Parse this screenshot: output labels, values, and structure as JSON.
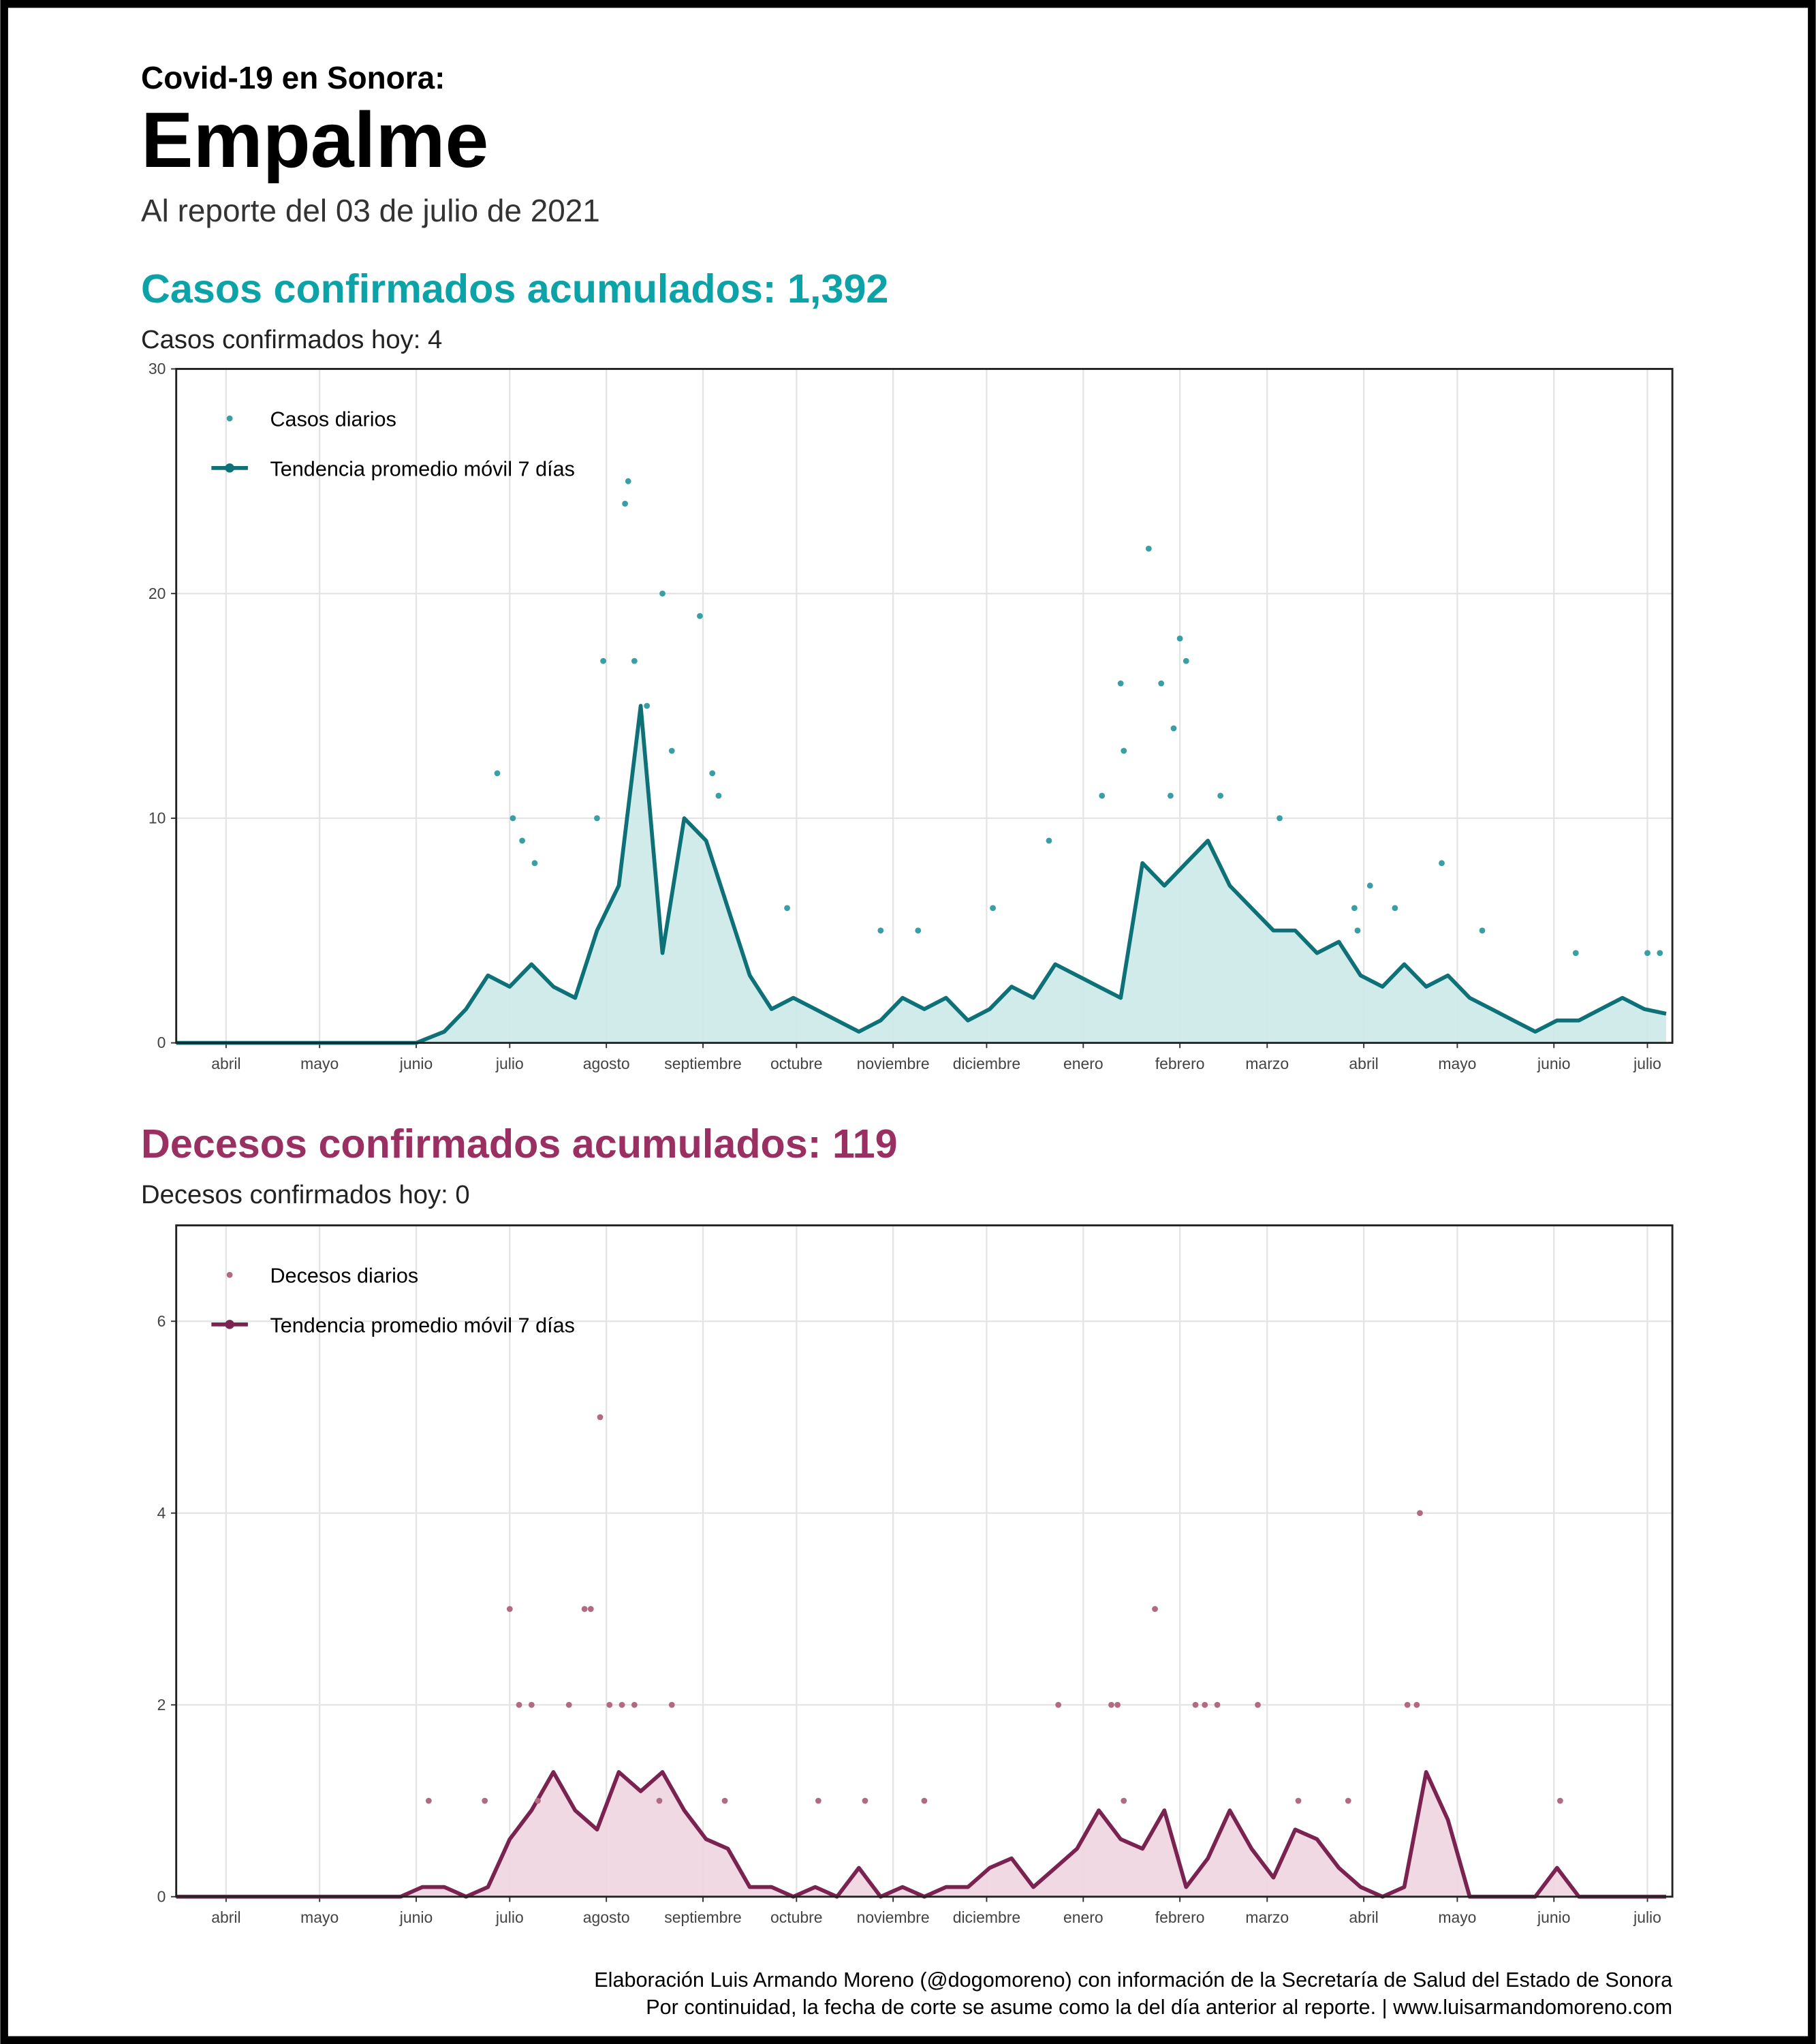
{
  "header": {
    "supertitle": "Covid-19 en Sonora:",
    "title": "Empalme",
    "subtitle": "Al reporte del 03 de julio de 2021"
  },
  "chart_data": [
    {
      "type": "line",
      "title": "Casos confirmados acumulados: 1,392",
      "subtitle": "Casos confirmados hoy: 4",
      "legend": "top-left",
      "grid": true,
      "xlim": [
        -16,
        464
      ],
      "xticks": [
        {
          "value": 0,
          "label": "abril"
        },
        {
          "value": 30,
          "label": "mayo"
        },
        {
          "value": 61,
          "label": "junio"
        },
        {
          "value": 91,
          "label": "julio"
        },
        {
          "value": 122,
          "label": "agosto"
        },
        {
          "value": 153,
          "label": "septiembre"
        },
        {
          "value": 183,
          "label": "octubre"
        },
        {
          "value": 214,
          "label": "noviembre"
        },
        {
          "value": 244,
          "label": "diciembre"
        },
        {
          "value": 275,
          "label": "enero"
        },
        {
          "value": 306,
          "label": "febrero"
        },
        {
          "value": 334,
          "label": "marzo"
        },
        {
          "value": 365,
          "label": "abril"
        },
        {
          "value": 395,
          "label": "mayo"
        },
        {
          "value": 426,
          "label": "junio"
        },
        {
          "value": 456,
          "label": "julio"
        }
      ],
      "ylim": [
        0,
        30
      ],
      "yticks": [
        0,
        10,
        20,
        30
      ],
      "series": [
        {
          "name": "Casos diarios",
          "type": "scatter",
          "color": "#3a9ea5",
          "x": [
            128,
            129,
            131,
            121,
            140,
            152,
            119,
            135,
            143,
            87,
            92,
            99,
            95,
            287,
            296,
            300,
            306,
            308,
            288,
            304,
            281,
            319,
            338,
            362,
            367,
            390,
            363,
            433,
            456,
            460,
            210,
            222,
            156,
            180,
            375,
            403,
            158,
            303,
            246,
            264
          ],
          "values": [
            24,
            25,
            17,
            17,
            20,
            19,
            10,
            15,
            13,
            12,
            10,
            8,
            9,
            16,
            22,
            16,
            18,
            17,
            13,
            14,
            11,
            11,
            10,
            6,
            7,
            8,
            5,
            4,
            4,
            4,
            5,
            5,
            12,
            6,
            6,
            5,
            11,
            11,
            6,
            9
          ]
        },
        {
          "name": "Tendencia promedio móvil 7 días",
          "type": "line",
          "color": "#0f7178",
          "area_color": "#cce9e9",
          "x": [
            -16,
            61,
            70,
            77,
            84,
            91,
            98,
            105,
            112,
            119,
            126,
            133,
            140,
            147,
            154,
            161,
            168,
            175,
            182,
            189,
            196,
            203,
            210,
            217,
            224,
            231,
            238,
            245,
            252,
            259,
            266,
            273,
            280,
            287,
            294,
            301,
            308,
            315,
            322,
            329,
            336,
            343,
            350,
            357,
            364,
            371,
            378,
            385,
            392,
            399,
            406,
            413,
            420,
            427,
            434,
            441,
            448,
            455,
            462
          ],
          "values": [
            0,
            0,
            0.5,
            1.5,
            3,
            2.5,
            3.5,
            2.5,
            2,
            5,
            7,
            15,
            4,
            10,
            9,
            6,
            3,
            1.5,
            2,
            1.5,
            1,
            0.5,
            1,
            2,
            1.5,
            2,
            1,
            1.5,
            2.5,
            2,
            3.5,
            3,
            2.5,
            2,
            8,
            7,
            8,
            9,
            7,
            6,
            5,
            5,
            4,
            4.5,
            3,
            2.5,
            3.5,
            2.5,
            3,
            2,
            1.5,
            1,
            0.5,
            1,
            1,
            1.5,
            2,
            1.5,
            1.3
          ]
        }
      ]
    },
    {
      "type": "line",
      "title": "Decesos confirmados acumulados: 119",
      "subtitle": "Decesos confirmados hoy: 0",
      "legend": "top-left",
      "grid": true,
      "xlim": [
        -16,
        464
      ],
      "xticks": [
        {
          "value": 0,
          "label": "abril"
        },
        {
          "value": 30,
          "label": "mayo"
        },
        {
          "value": 61,
          "label": "junio"
        },
        {
          "value": 91,
          "label": "julio"
        },
        {
          "value": 122,
          "label": "agosto"
        },
        {
          "value": 153,
          "label": "septiembre"
        },
        {
          "value": 183,
          "label": "octubre"
        },
        {
          "value": 214,
          "label": "noviembre"
        },
        {
          "value": 244,
          "label": "diciembre"
        },
        {
          "value": 275,
          "label": "enero"
        },
        {
          "value": 306,
          "label": "febrero"
        },
        {
          "value": 334,
          "label": "marzo"
        },
        {
          "value": 365,
          "label": "abril"
        },
        {
          "value": 395,
          "label": "mayo"
        },
        {
          "value": 426,
          "label": "junio"
        },
        {
          "value": 456,
          "label": "julio"
        }
      ],
      "ylim": [
        0,
        7
      ],
      "yticks": [
        0,
        2,
        4,
        6
      ],
      "series": [
        {
          "name": "Decesos diarios",
          "type": "scatter",
          "color": "#b06a84",
          "x": [
            91,
            120,
            115,
            117,
            94,
            98,
            110,
            123,
            127,
            131,
            143,
            267,
            284,
            286,
            298,
            311,
            314,
            318,
            331,
            383,
            379,
            382,
            65,
            83,
            100,
            139,
            160,
            190,
            205,
            224,
            288,
            344,
            360,
            428
          ],
          "values": [
            3,
            5,
            3,
            3,
            2,
            2,
            2,
            2,
            2,
            2,
            2,
            2,
            2,
            2,
            3,
            2,
            2,
            2,
            2,
            4,
            2,
            2,
            1,
            1,
            1,
            1,
            1,
            1,
            1,
            1,
            1,
            1,
            1,
            1
          ]
        },
        {
          "name": "Tendencia promedio móvil 7 días",
          "type": "line",
          "color": "#7a2350",
          "area_color": "#f0d5e0",
          "x": [
            -16,
            56,
            63,
            70,
            77,
            84,
            91,
            98,
            105,
            112,
            119,
            126,
            133,
            140,
            147,
            154,
            161,
            168,
            175,
            182,
            189,
            196,
            203,
            210,
            217,
            224,
            231,
            238,
            245,
            252,
            259,
            266,
            273,
            280,
            287,
            294,
            301,
            308,
            315,
            322,
            329,
            336,
            343,
            350,
            357,
            364,
            371,
            378,
            385,
            392,
            399,
            420,
            427,
            434,
            462
          ],
          "values": [
            0,
            0,
            0.1,
            0.1,
            0,
            0.1,
            0.6,
            0.9,
            1.3,
            0.9,
            0.7,
            1.3,
            1.1,
            1.3,
            0.9,
            0.6,
            0.5,
            0.1,
            0.1,
            0,
            0.1,
            0,
            0.3,
            0,
            0.1,
            0,
            0.1,
            0.1,
            0.3,
            0.4,
            0.1,
            0.3,
            0.5,
            0.9,
            0.6,
            0.5,
            0.9,
            0.1,
            0.4,
            0.9,
            0.5,
            0.2,
            0.7,
            0.6,
            0.3,
            0.1,
            0,
            0.1,
            1.3,
            0.8,
            0,
            0,
            0.3,
            0,
            0
          ]
        }
      ]
    }
  ],
  "footer": {
    "line1": "Elaboración Luis Armando Moreno (@dogomoreno) con información de la Secretaría de Salud del Estado de Sonora",
    "line2": "Por continuidad, la fecha de corte se asume como la del día anterior al reporte. | www.luisarmandomoreno.com"
  }
}
